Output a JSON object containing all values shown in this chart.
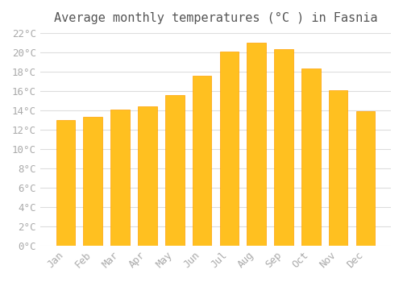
{
  "title": "Average monthly temperatures (°C ) in Fasnia",
  "months": [
    "Jan",
    "Feb",
    "Mar",
    "Apr",
    "May",
    "Jun",
    "Jul",
    "Aug",
    "Sep",
    "Oct",
    "Nov",
    "Dec"
  ],
  "values": [
    13.0,
    13.3,
    14.1,
    14.4,
    15.6,
    17.6,
    20.1,
    21.0,
    20.3,
    18.3,
    16.1,
    13.9
  ],
  "bar_color_face": "#FFC020",
  "bar_color_edge": "#FFA000",
  "background_color": "#FFFFFF",
  "grid_color": "#DDDDDD",
  "text_color": "#AAAAAA",
  "title_color": "#555555",
  "ylim": [
    0,
    22
  ],
  "yticks": [
    0,
    2,
    4,
    6,
    8,
    10,
    12,
    14,
    16,
    18,
    20,
    22
  ],
  "title_fontsize": 11,
  "tick_fontsize": 9,
  "font_family": "monospace"
}
